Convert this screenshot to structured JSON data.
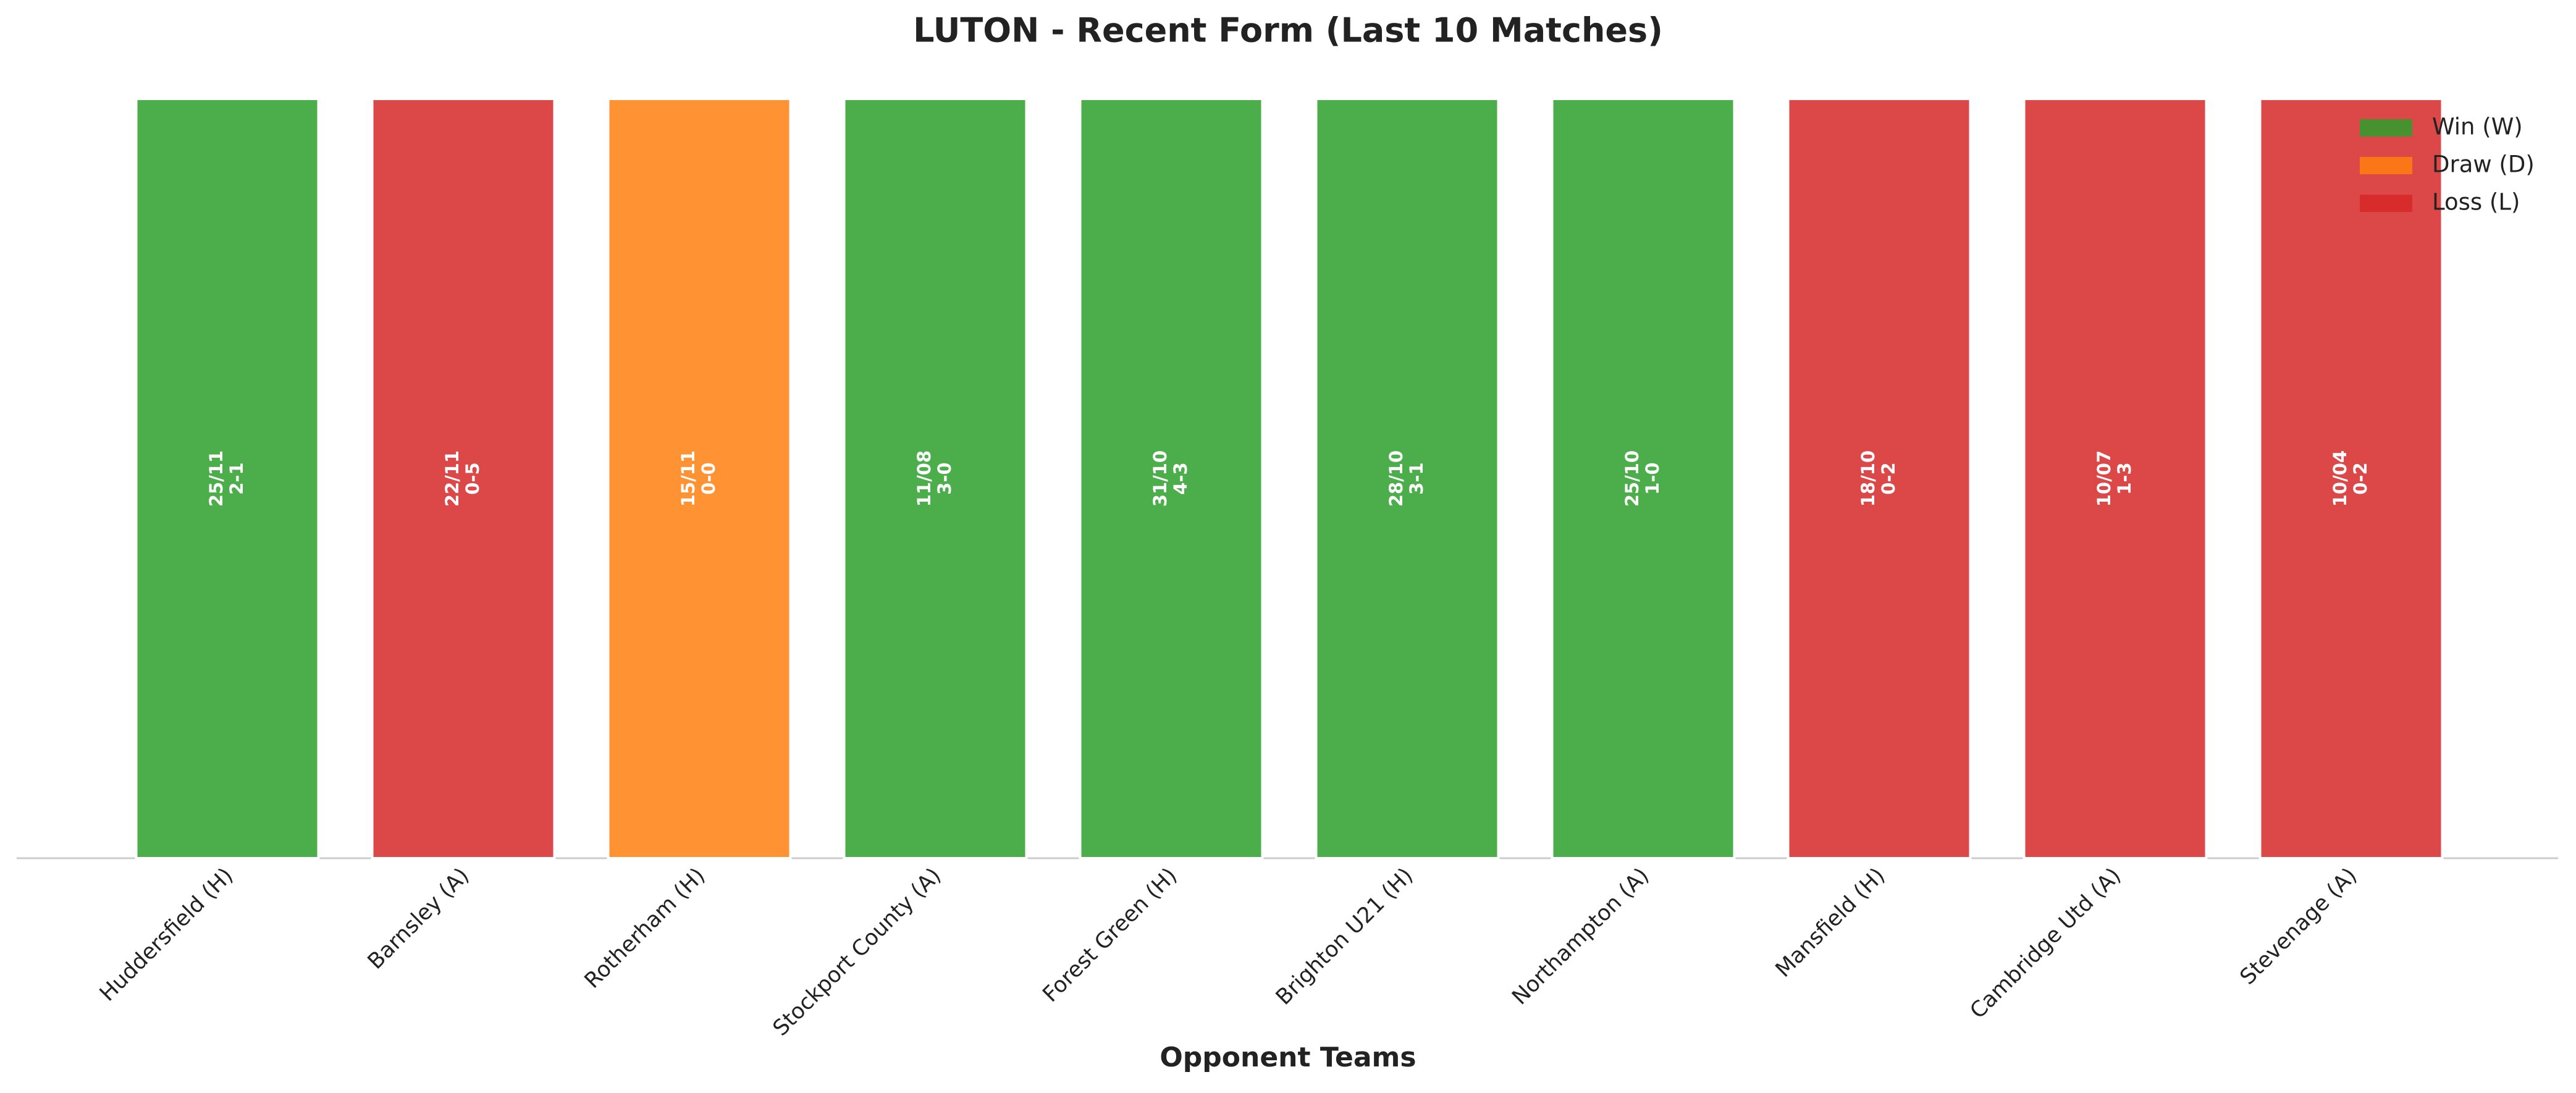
{
  "chart_data": {
    "type": "bar",
    "title": "LUTON - Recent Form (Last 10 Matches)",
    "x_label": "Opponent Teams",
    "categories": [
      "Huddersfield (H)",
      "Barnsley (A)",
      "Rotherham (H)",
      "Stockport County (A)",
      "Forest Green (H)",
      "Brighton U21 (H)",
      "Northampton (A)",
      "Mansfield (H)",
      "Cambridge Utd (A)",
      "Stevenage (A)"
    ],
    "values": [
      1,
      1,
      1,
      1,
      1,
      1,
      1,
      1,
      1,
      1
    ],
    "dates": [
      "25/11",
      "22/11",
      "15/11",
      "11/08",
      "31/10",
      "28/10",
      "25/10",
      "18/10",
      "10/07",
      "10/04"
    ],
    "scores": [
      "2-1",
      "0-5",
      "0-0",
      "3-0",
      "4-3",
      "3-1",
      "1-0",
      "0-2",
      "1-3",
      "0-2"
    ],
    "colors": [
      "#2ca02c",
      "#d62728",
      "#ff7f0e",
      "#2ca02c",
      "#2ca02c",
      "#2ca02c",
      "#2ca02c",
      "#d62728",
      "#d62728",
      "#d62728"
    ],
    "ylim": [
      0,
      1
    ],
    "legend": [
      {
        "name": "Win (W)",
        "color": "#2ca02c"
      },
      {
        "name": "Draw (D)",
        "color": "#ff7f0e"
      },
      {
        "name": "Loss (L)",
        "color": "#d62728"
      }
    ]
  }
}
